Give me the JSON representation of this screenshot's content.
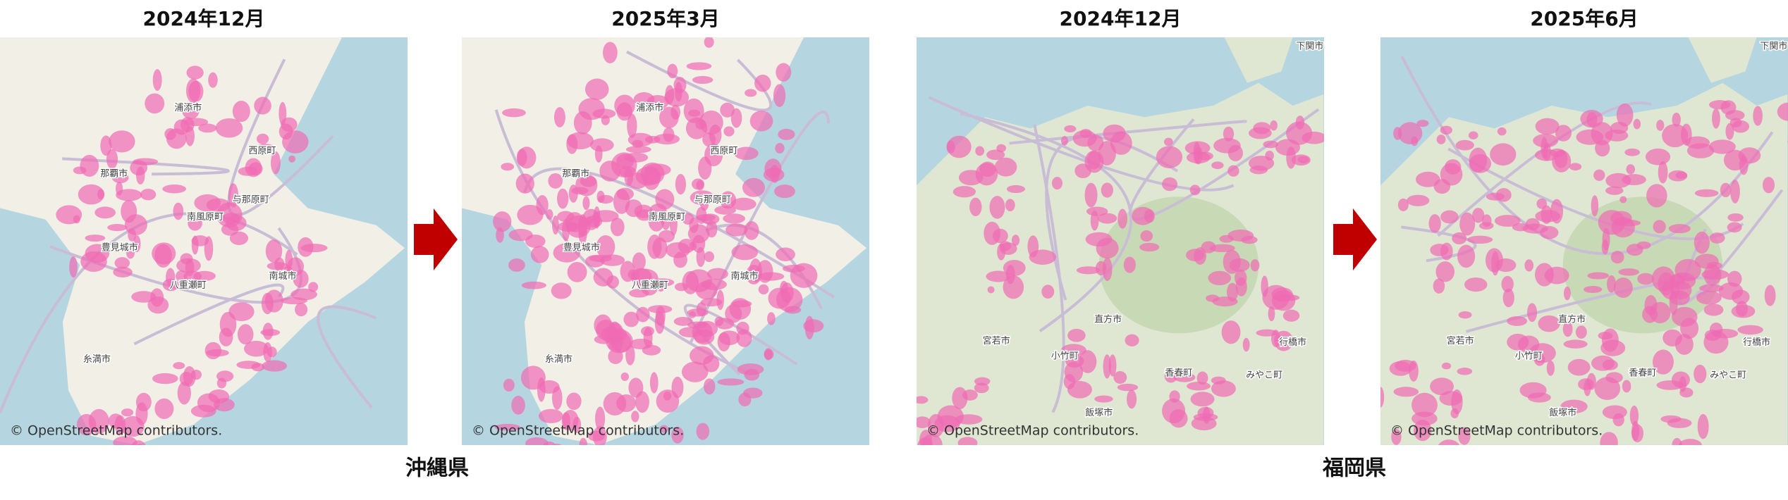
{
  "panels": [
    {
      "title": "2024年12月",
      "attribution": "© OpenStreetMap contributors.",
      "labels": [
        "浦添市",
        "西原町",
        "那覇市",
        "与那原町",
        "南風原町",
        "豊見城市",
        "八重瀬町",
        "南城市",
        "糸満市"
      ]
    },
    {
      "title": "2025年3月",
      "attribution": "© OpenStreetMap contributors.",
      "labels": [
        "浦添市",
        "西原町",
        "那覇市",
        "与那原町",
        "南風原町",
        "豊見城市",
        "八重瀬町",
        "南城市",
        "糸満市"
      ]
    },
    {
      "title": "2024年12月",
      "attribution": "© OpenStreetMap contributors.",
      "labels": [
        "下関市",
        "直方市",
        "宮若市",
        "小竹町",
        "香春町",
        "行橋市",
        "みやこ町",
        "飯塚市"
      ]
    },
    {
      "title": "2025年6月",
      "attribution": "© OpenStreetMap contributors.",
      "labels": [
        "下関市",
        "直方市",
        "宮若市",
        "小竹町",
        "香春町",
        "行橋市",
        "みやこ町",
        "飯塚市"
      ]
    }
  ],
  "regions": [
    {
      "caption": "沖縄県"
    },
    {
      "caption": "福岡県"
    }
  ]
}
